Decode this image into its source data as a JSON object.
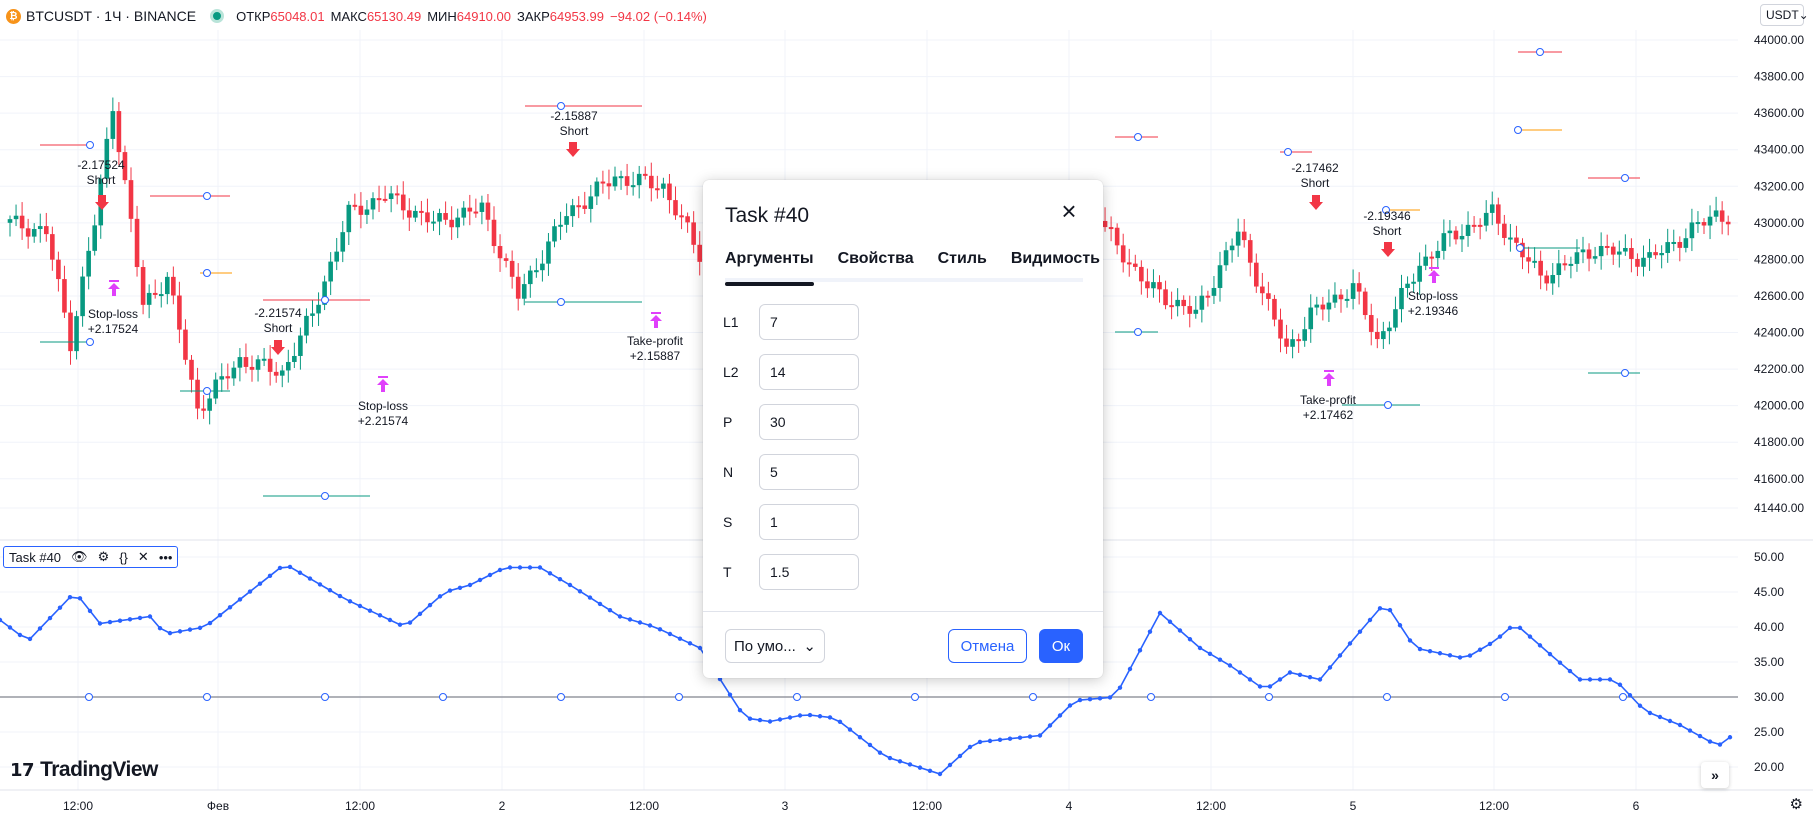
{
  "header": {
    "symbol": "BTCUSDT · 1Ч · BINANCE",
    "open_label": "ОТКР",
    "open": "65048.01",
    "high_label": "МАКС",
    "high": "65130.49",
    "low_label": "МИН",
    "low": "64910.00",
    "close_label": "ЗАКР",
    "close": "64953.99",
    "change": "−94.02 (−0.14%)",
    "currency": "USDT"
  },
  "price_axis": [
    "44000.00",
    "43800.00",
    "43600.00",
    "43400.00",
    "43200.00",
    "43000.00",
    "42800.00",
    "42600.00",
    "42400.00",
    "42200.00",
    "42000.00",
    "41800.00",
    "41600.00",
    "41440.00"
  ],
  "indicator_axis": [
    "50.00",
    "45.00",
    "40.00",
    "35.00",
    "30.00",
    "25.00",
    "20.00"
  ],
  "time_axis": [
    "12:00",
    "Фев",
    "12:00",
    "2",
    "12:00",
    "3",
    "12:00",
    "4",
    "12:00",
    "5",
    "12:00",
    "6"
  ],
  "annotations": [
    {
      "lines": [
        "-2.17524",
        "Short"
      ]
    },
    {
      "lines": [
        "Stop-loss",
        "+2.17524"
      ]
    },
    {
      "lines": [
        "-2.21574",
        "Short"
      ]
    },
    {
      "lines": [
        "Stop-loss",
        "+2.21574"
      ]
    },
    {
      "lines": [
        "-2.15887",
        "Short"
      ]
    },
    {
      "lines": [
        "Take-profit",
        "+2.15887"
      ]
    },
    {
      "lines": [
        "-2.17462",
        "Short"
      ]
    },
    {
      "lines": [
        "Take-profit",
        "+2.17462"
      ]
    },
    {
      "lines": [
        "-2.19346",
        "Short"
      ]
    },
    {
      "lines": [
        "Stop-loss",
        "+2.19346"
      ]
    }
  ],
  "indicator_legend": {
    "title": "Task #40"
  },
  "brand": "TradingView",
  "dialog": {
    "title": "Task #40",
    "tabs": [
      "Аргументы",
      "Свойства",
      "Стиль",
      "Видимость"
    ],
    "fields": [
      {
        "label": "L1",
        "value": "7"
      },
      {
        "label": "L2",
        "value": "14"
      },
      {
        "label": "P",
        "value": "30"
      },
      {
        "label": "N",
        "value": "5"
      },
      {
        "label": "S",
        "value": "1"
      },
      {
        "label": "T",
        "value": "1.5"
      }
    ],
    "preset": "По умо...",
    "cancel": "Отмена",
    "ok": "Ок"
  },
  "colors": {
    "up": "#089981",
    "down": "#f23645",
    "indicator": "#2962ff",
    "signal": "#e040fb",
    "accent": "#2962ff"
  }
}
